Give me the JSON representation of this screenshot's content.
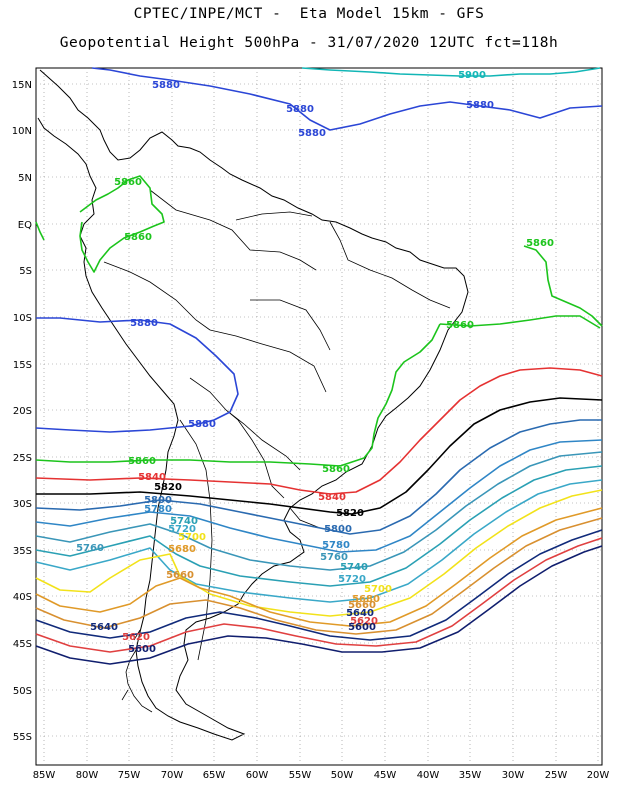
{
  "title_line1": "CPTEC/INPE/MCT -  Eta Model 15km - GFS",
  "title_line2": "Geopotential Height 500hPa - 31/07/2020 12UTC fct=118h",
  "lat_labels": [
    "15N",
    "10N",
    "5N",
    "EQ",
    "5S",
    "10S",
    "15S",
    "20S",
    "25S",
    "30S",
    "35S",
    "40S",
    "45S",
    "50S",
    "55S"
  ],
  "lon_labels": [
    "85W",
    "80W",
    "75W",
    "70W",
    "65W",
    "60W",
    "55W",
    "50W",
    "45W",
    "40W",
    "35W",
    "30W",
    "25W",
    "20W"
  ],
  "contour_colors": {
    "5900": "#12b6b6",
    "5880": "#2b46d6",
    "5860": "#1cc41c",
    "5840": "#e53232",
    "5820": "#000000",
    "5800": "#2a6ab0",
    "5780": "#2f86c6",
    "5760": "#3a96b8",
    "5740": "#2aa0b4",
    "5720": "#3aa8c8",
    "5700": "#f2e21a",
    "5680": "#e09a28",
    "5660": "#d89030",
    "5640": "#102a7a",
    "5620": "#e04040",
    "5600": "#101e6e"
  },
  "contour_labels": [
    {
      "text": "5900",
      "key": "5900"
    },
    {
      "text": "5880",
      "key": "5880"
    },
    {
      "text": "5880",
      "key": "5880"
    },
    {
      "text": "5880",
      "key": "5880"
    },
    {
      "text": "5880",
      "key": "5880"
    },
    {
      "text": "5880",
      "key": "5880"
    },
    {
      "text": "5880",
      "key": "5880"
    },
    {
      "text": "5860",
      "key": "5860"
    },
    {
      "text": "5860",
      "key": "5860"
    },
    {
      "text": "5860",
      "key": "5860"
    },
    {
      "text": "5860",
      "key": "5860"
    },
    {
      "text": "5860",
      "key": "5860"
    },
    {
      "text": "5860",
      "key": "5860"
    },
    {
      "text": "5840",
      "key": "5840"
    },
    {
      "text": "5840",
      "key": "5840"
    },
    {
      "text": "5820",
      "key": "5820"
    },
    {
      "text": "5820",
      "key": "5820"
    },
    {
      "text": "5800",
      "key": "5800"
    },
    {
      "text": "5800",
      "key": "5800"
    },
    {
      "text": "5780",
      "key": "5780"
    },
    {
      "text": "5780",
      "key": "5780"
    },
    {
      "text": "5760",
      "key": "5760"
    },
    {
      "text": "5760",
      "key": "5760"
    },
    {
      "text": "5740",
      "key": "5740"
    },
    {
      "text": "5740",
      "key": "5740"
    },
    {
      "text": "5720",
      "key": "5720"
    },
    {
      "text": "5720",
      "key": "5720"
    },
    {
      "text": "5700",
      "key": "5700"
    },
    {
      "text": "5700",
      "key": "5700"
    },
    {
      "text": "5680",
      "key": "5680"
    },
    {
      "text": "5680",
      "key": "5680"
    },
    {
      "text": "5660",
      "key": "5660"
    },
    {
      "text": "5660",
      "key": "5660"
    },
    {
      "text": "5640",
      "key": "5640"
    },
    {
      "text": "5640",
      "key": "5640"
    },
    {
      "text": "5620",
      "key": "5620"
    },
    {
      "text": "5620",
      "key": "5620"
    },
    {
      "text": "5600",
      "key": "5600"
    },
    {
      "text": "5600",
      "key": "5600"
    }
  ]
}
